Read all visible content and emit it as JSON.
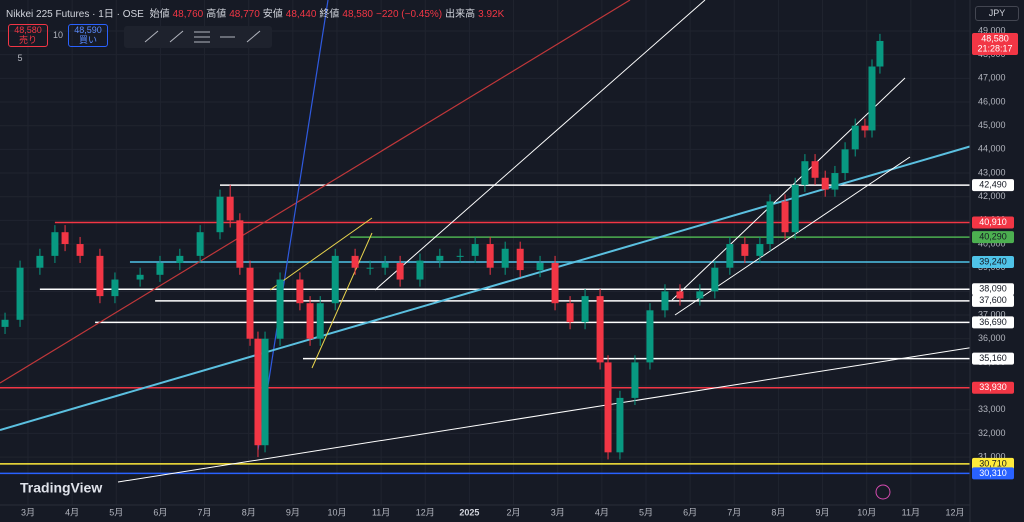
{
  "header": {
    "instrument": "Nikkei 225 Futures · 1日 · OSE",
    "ohlc": [
      {
        "name": "始値",
        "value": "48,760"
      },
      {
        "name": "高値",
        "value": "48,770"
      },
      {
        "name": "安値",
        "value": "48,440"
      },
      {
        "name": "終値",
        "value": "48,580"
      }
    ],
    "change": "−220 (−0.45%)",
    "volume_name": "出来高",
    "volume": "3.92K",
    "sell_price": "48,580",
    "sell_label": "売り",
    "spread": "10",
    "buy_price": "48,590",
    "buy_label": "買い",
    "indicators": "5",
    "currency": "JPY"
  },
  "last_price": {
    "value": 48580,
    "label": "48,580"
  },
  "countdown": "21:28:17",
  "brand": "TradingView",
  "chart_data": {
    "type": "candlestick",
    "up_color": "#089981",
    "down_color": "#f23645",
    "x": [
      -0.52,
      -0.18,
      0.27,
      0.61,
      0.84,
      1.18,
      1.63,
      1.97,
      2.54,
      2.99,
      3.44,
      3.9,
      4.35,
      4.58,
      4.8,
      5.03,
      5.21,
      5.37,
      5.71,
      6.16,
      6.39,
      6.62,
      6.96,
      7.41,
      7.75,
      8.09,
      8.43,
      8.88,
      9.33,
      9.79,
      10.13,
      10.47,
      10.81,
      11.15,
      11.6,
      11.94,
      12.28,
      12.62,
      12.96,
      13.14,
      13.41,
      13.75,
      14.09,
      14.43,
      14.77,
      15.22,
      15.56,
      15.9,
      16.24,
      16.58,
      16.81,
      17.15,
      17.38,
      17.6,
      17.83,
      18.06,
      18.28,
      18.51,
      18.74,
      18.96,
      19.12,
      19.3
    ],
    "open": [
      36500,
      36800,
      39000,
      39500,
      40500,
      40000,
      39500,
      37800,
      38500,
      38700,
      39200,
      39500,
      40500,
      42000,
      41000,
      39000,
      36000,
      31500,
      36000,
      38500,
      37500,
      36000,
      37500,
      39500,
      39000,
      39000,
      39200,
      38500,
      39300,
      39500,
      39500,
      40000,
      39000,
      39800,
      38900,
      39200,
      37500,
      36700,
      37800,
      35000,
      31200,
      33500,
      35000,
      37200,
      38000,
      37700,
      38000,
      39000,
      40000,
      39500,
      40000,
      41800,
      40500,
      42500,
      43500,
      42800,
      42300,
      43000,
      44000,
      45000,
      44800,
      47500
    ],
    "high": [
      37100,
      39300,
      39800,
      40800,
      40800,
      40300,
      39800,
      38800,
      39000,
      39500,
      39800,
      40800,
      42300,
      42500,
      41300,
      39300,
      36300,
      36300,
      38800,
      38800,
      37800,
      37800,
      39800,
      39800,
      39300,
      39500,
      39500,
      39600,
      39800,
      39800,
      40300,
      40300,
      40100,
      40100,
      39500,
      39500,
      37800,
      38100,
      38100,
      35300,
      33800,
      35300,
      37500,
      38300,
      38300,
      38300,
      39300,
      40300,
      40300,
      40300,
      42100,
      42100,
      42800,
      43800,
      43800,
      43100,
      43300,
      44300,
      45300,
      45300,
      47800,
      48880
    ],
    "low": [
      36200,
      36500,
      38700,
      39200,
      39700,
      39200,
      37500,
      37500,
      38200,
      38400,
      38900,
      39200,
      40200,
      40700,
      38700,
      35700,
      31000,
      31200,
      35700,
      37200,
      35700,
      35700,
      37200,
      38700,
      38700,
      38700,
      38200,
      38200,
      39000,
      39200,
      39200,
      38700,
      38700,
      38600,
      38600,
      37200,
      36400,
      36400,
      34700,
      30900,
      30900,
      33200,
      34700,
      36900,
      37400,
      37400,
      37700,
      38700,
      39200,
      39200,
      39700,
      40200,
      40200,
      42200,
      42500,
      42000,
      42000,
      42700,
      43700,
      44500,
      44500,
      47200
    ],
    "close": [
      36800,
      39000,
      39500,
      40500,
      40000,
      39500,
      37800,
      38500,
      38700,
      39200,
      39500,
      40500,
      42000,
      41000,
      39000,
      36000,
      31500,
      36000,
      38500,
      37500,
      36000,
      37500,
      39500,
      39000,
      39000,
      39200,
      38500,
      39300,
      39500,
      39500,
      40000,
      39000,
      39800,
      38900,
      39200,
      37500,
      36700,
      37800,
      35000,
      31200,
      33500,
      35000,
      37200,
      38000,
      37700,
      38000,
      39000,
      40000,
      39500,
      40000,
      41800,
      40500,
      42500,
      43500,
      42800,
      42300,
      43000,
      44000,
      45000,
      44800,
      47500,
      48580
    ],
    "xlim": [
      -0.634,
      21.34
    ],
    "ylim": [
      28975,
      50310
    ],
    "xticks": [
      {
        "value": 0,
        "label": "3月"
      },
      {
        "value": 1,
        "label": "4月"
      },
      {
        "value": 2,
        "label": "5月"
      },
      {
        "value": 3,
        "label": "6月"
      },
      {
        "value": 4,
        "label": "7月"
      },
      {
        "value": 5,
        "label": "8月"
      },
      {
        "value": 6,
        "label": "9月"
      },
      {
        "value": 7,
        "label": "10月"
      },
      {
        "value": 8,
        "label": "11月"
      },
      {
        "value": 9,
        "label": "12月"
      },
      {
        "value": 10,
        "label": "2025"
      },
      {
        "value": 11,
        "label": "2月"
      },
      {
        "value": 12,
        "label": "3月"
      },
      {
        "value": 13,
        "label": "4月"
      },
      {
        "value": 14,
        "label": "5月"
      },
      {
        "value": 15,
        "label": "6月"
      },
      {
        "value": 16,
        "label": "7月"
      },
      {
        "value": 17,
        "label": "8月"
      },
      {
        "value": 18,
        "label": "9月"
      },
      {
        "value": 19,
        "label": "10月"
      },
      {
        "value": 20,
        "label": "11月"
      },
      {
        "value": 21,
        "label": "12月"
      }
    ],
    "yticks": [
      {
        "value": 31000,
        "label": "31,000"
      },
      {
        "value": 32000,
        "label": "32,000"
      },
      {
        "value": 33000,
        "label": "33,000"
      },
      {
        "value": 34000,
        "label": "34,000"
      },
      {
        "value": 35000,
        "label": "35,000"
      },
      {
        "value": 36000,
        "label": "36,000"
      },
      {
        "value": 37000,
        "label": "37,000"
      },
      {
        "value": 38000,
        "label": "38,000"
      },
      {
        "value": 39000,
        "label": "39,000"
      },
      {
        "value": 40000,
        "label": "40,000"
      },
      {
        "value": 41000,
        "label": "41,000"
      },
      {
        "value": 42000,
        "label": "42,000"
      },
      {
        "value": 43000,
        "label": "43,000"
      },
      {
        "value": 44000,
        "label": "44,000"
      },
      {
        "value": 45000,
        "label": "45,000"
      },
      {
        "value": 46000,
        "label": "46,000"
      },
      {
        "value": 47000,
        "label": "47,000"
      },
      {
        "value": 48000,
        "label": "48,000"
      },
      {
        "value": 49000,
        "label": "49,000"
      }
    ],
    "grid": true,
    "levels": [
      {
        "value": 42490,
        "label": "42,490",
        "color": "#ffffff",
        "x0": 4.35
      },
      {
        "value": 40910,
        "label": "40,910",
        "color": "#f23645",
        "x0": 0.61
      },
      {
        "value": 40290,
        "label": "40,290",
        "color": "#4caf50",
        "x0": 7.3
      },
      {
        "value": 39240,
        "label": "39,240",
        "color": "#4fc3e8",
        "x0": 2.31
      },
      {
        "value": 38090,
        "label": "38,090",
        "color": "#ffffff",
        "x0": 0.27
      },
      {
        "value": 37600,
        "label": "37,600",
        "color": "#ffffff",
        "x0": 2.88
      },
      {
        "value": 36690,
        "label": "36,690",
        "color": "#ffffff",
        "x0": 1.52
      },
      {
        "value": 35160,
        "label": "35,160",
        "color": "#ffffff",
        "x0": 6.23
      },
      {
        "value": 33930,
        "label": "33,930",
        "color": "#f23645",
        "x0": -0.634
      },
      {
        "value": 30710,
        "label": "30,710",
        "color": "#ffeb3b",
        "x0": -0.634
      },
      {
        "value": 30310,
        "label": "30,310",
        "color": "#2962ff",
        "x0": -0.634
      }
    ]
  }
}
